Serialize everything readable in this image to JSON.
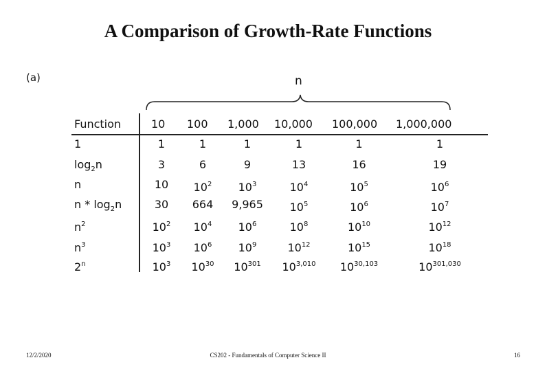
{
  "header": {
    "title": "A Comparison of Growth-Rate Functions",
    "label": "(a)",
    "brace_label": "n"
  },
  "table": {
    "columns": [
      "Function",
      "10",
      "100",
      "1,000",
      "10,000",
      "100,000",
      "1,000,000"
    ],
    "rows": [
      [
        "1",
        "1",
        "1",
        "1",
        "1",
        "1",
        "1"
      ],
      [
        {
          "base": "log",
          "sub": "2",
          "tail": "n"
        },
        "3",
        "6",
        "9",
        "13",
        "16",
        "19"
      ],
      [
        "n",
        "10",
        {
          "base": "10",
          "sup": "2"
        },
        {
          "base": "10",
          "sup": "3"
        },
        {
          "base": "10",
          "sup": "4"
        },
        {
          "base": "10",
          "sup": "5"
        },
        {
          "base": "10",
          "sup": "6"
        }
      ],
      [
        {
          "base": "n * log",
          "sub": "2",
          "tail": "n"
        },
        "30",
        "664",
        "9,965",
        {
          "base": "10",
          "sup": "5"
        },
        {
          "base": "10",
          "sup": "6"
        },
        {
          "base": "10",
          "sup": "7"
        }
      ],
      [
        {
          "base": "n",
          "sup": "2"
        },
        {
          "base": "10",
          "sup": "2"
        },
        {
          "base": "10",
          "sup": "4"
        },
        {
          "base": "10",
          "sup": "6"
        },
        {
          "base": "10",
          "sup": "8"
        },
        {
          "base": "10",
          "sup": "10"
        },
        {
          "base": "10",
          "sup": "12"
        }
      ],
      [
        {
          "base": "n",
          "sup": "3"
        },
        {
          "base": "10",
          "sup": "3"
        },
        {
          "base": "10",
          "sup": "6"
        },
        {
          "base": "10",
          "sup": "9"
        },
        {
          "base": "10",
          "sup": "12"
        },
        {
          "base": "10",
          "sup": "15"
        },
        {
          "base": "10",
          "sup": "18"
        }
      ],
      [
        {
          "base": "2",
          "sup": "n"
        },
        {
          "base": "10",
          "sup": "3"
        },
        {
          "base": "10",
          "sup": "30"
        },
        {
          "base": "10",
          "sup": "301"
        },
        {
          "base": "10",
          "sup": "3,010"
        },
        {
          "base": "10",
          "sup": "30,103"
        },
        {
          "base": "10",
          "sup": "301,030"
        }
      ]
    ]
  },
  "footer": {
    "date": "12/2/2020",
    "course": "CS202 - Fundamentals of Computer Science II",
    "page": "16"
  }
}
